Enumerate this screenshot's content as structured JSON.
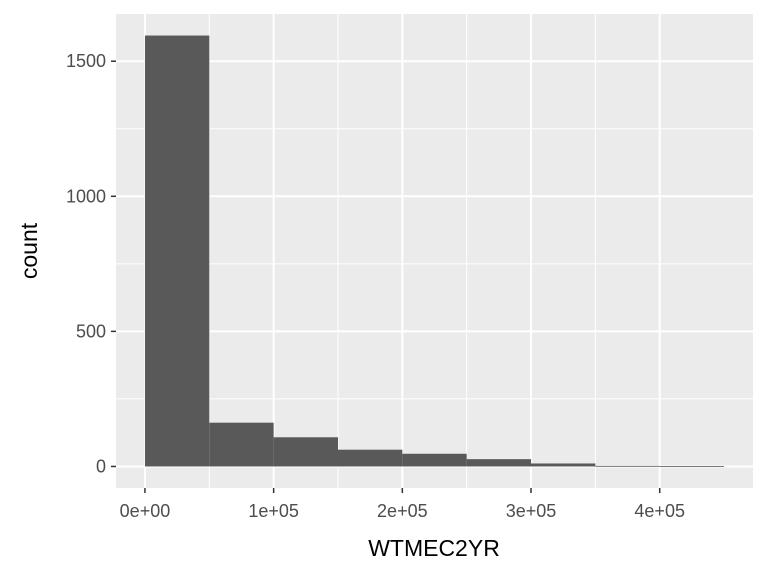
{
  "chart_data": {
    "type": "bar",
    "subtype": "histogram",
    "xlabel": "WTMEC2YR",
    "ylabel": "count",
    "bins": [
      {
        "x0": 0,
        "x1": 50000,
        "count": 1595
      },
      {
        "x0": 50000,
        "x1": 100000,
        "count": 162
      },
      {
        "x0": 100000,
        "x1": 150000,
        "count": 108
      },
      {
        "x0": 150000,
        "x1": 200000,
        "count": 62
      },
      {
        "x0": 200000,
        "x1": 250000,
        "count": 47
      },
      {
        "x0": 250000,
        "x1": 300000,
        "count": 27
      },
      {
        "x0": 300000,
        "x1": 350000,
        "count": 11
      },
      {
        "x0": 350000,
        "x1": 400000,
        "count": 2
      },
      {
        "x0": 400000,
        "x1": 450000,
        "count": 1
      }
    ],
    "x_ticks": [
      {
        "value": 0,
        "label": "0e+00"
      },
      {
        "value": 100000,
        "label": "1e+05"
      },
      {
        "value": 200000,
        "label": "2e+05"
      },
      {
        "value": 300000,
        "label": "3e+05"
      },
      {
        "value": 400000,
        "label": "4e+05"
      }
    ],
    "y_ticks": [
      {
        "value": 0,
        "label": "0"
      },
      {
        "value": 500,
        "label": "500"
      },
      {
        "value": 1000,
        "label": "1000"
      },
      {
        "value": 1500,
        "label": "1500"
      }
    ],
    "xlim": [
      -22500,
      472500
    ],
    "ylim": [
      -79.75,
      1674.75
    ],
    "grid": true,
    "colors": {
      "panel_background": "#ebebeb",
      "grid_major": "#ffffff",
      "bar_fill": "#595959",
      "tick_mark": "#333333"
    }
  }
}
